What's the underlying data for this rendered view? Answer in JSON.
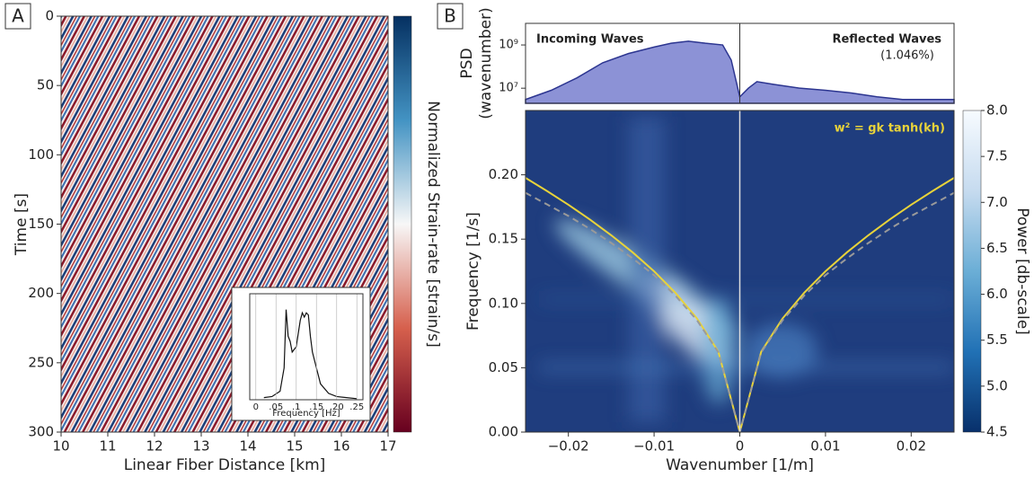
{
  "panel_labels": [
    "A",
    "B"
  ],
  "chart_data": [
    {
      "type": "heatmap",
      "xlabel": "Linear Fiber Distance [km]",
      "ylabel": "Time [s]",
      "xlim": [
        10,
        17
      ],
      "xticks": [
        10,
        11,
        12,
        13,
        14,
        15,
        16,
        17
      ],
      "ylim": [
        300,
        0
      ],
      "yticks": [
        0,
        50,
        100,
        150,
        200,
        250,
        300
      ],
      "colorbar": {
        "label": "Normalized Strain-rate [strain/s]",
        "colors": [
          "#67001f",
          "#d6604d",
          "#f7f7f7",
          "#4393c3",
          "#053061"
        ]
      }
    },
    {
      "type": "line",
      "xlabel": "Frequency [Hz]",
      "grid": true,
      "color": "#111111",
      "xlim": [
        -0.015,
        0.265
      ],
      "xticks": [
        0,
        {
          "value": 0.05,
          "label": ".05"
        },
        {
          "value": 0.1,
          "label": ".1"
        },
        {
          "value": 0.15,
          "label": ".15"
        },
        {
          "value": 0.2,
          "label": ".20"
        },
        {
          "value": 0.25,
          "label": ".25"
        }
      ],
      "ylim": [
        0,
        1
      ],
      "x": [
        0.02,
        0.04,
        0.06,
        0.07,
        0.075,
        0.08,
        0.085,
        0.09,
        0.1,
        0.11,
        0.115,
        0.12,
        0.125,
        0.13,
        0.135,
        0.14,
        0.15,
        0.16,
        0.18,
        0.2,
        0.25
      ],
      "values": [
        0.02,
        0.03,
        0.08,
        0.3,
        0.85,
        0.6,
        0.55,
        0.45,
        0.5,
        0.75,
        0.82,
        0.78,
        0.82,
        0.8,
        0.6,
        0.45,
        0.3,
        0.15,
        0.06,
        0.03,
        0.01
      ]
    },
    {
      "type": "area",
      "ylabel": [
        "PSD",
        "(wavenumber)"
      ],
      "ylog": true,
      "color": "#8c92d6",
      "line_color": "#2c3590",
      "xlim": [
        -0.025,
        0.025
      ],
      "ylim": [
        2000000,
        10000000000
      ],
      "yticks": [
        {
          "value": 10000000,
          "label": "10⁷"
        },
        {
          "value": 1000000000,
          "label": "10⁹"
        }
      ],
      "annotations": [
        "Incoming Waves",
        "Reflected Waves",
        "(1.046%)"
      ],
      "x": [
        -0.025,
        -0.022,
        -0.019,
        -0.016,
        -0.013,
        -0.01,
        -0.008,
        -0.006,
        -0.004,
        -0.002,
        -0.001,
        0,
        0.001,
        0.002,
        0.004,
        0.007,
        0.01,
        0.013,
        0.016,
        0.019,
        0.022,
        0.025
      ],
      "values": [
        3000000,
        8000000,
        30000000,
        150000000,
        400000000,
        800000000,
        1200000000,
        1500000000,
        1200000000,
        1000000000,
        200000000,
        4000000,
        10000000,
        20000000,
        15000000,
        10000000,
        8000000,
        6000000,
        4000000,
        3000000,
        3000000,
        3000000
      ]
    },
    {
      "type": "line",
      "xlabel": "Wavenumber [1/m]",
      "ylabel": "Frequency [1/s]",
      "xlim": [
        -0.025,
        0.025
      ],
      "xticks": [
        {
          "value": -0.02,
          "label": "−0.02"
        },
        {
          "value": -0.01,
          "label": "−0.01"
        },
        0,
        0.01,
        0.02
      ],
      "ylim": [
        0,
        0.25
      ],
      "yticks": [
        {
          "value": 0,
          "label": "0.00"
        },
        0.05,
        {
          "value": 0.1,
          "label": "0.10"
        },
        0.15,
        {
          "value": 0.2,
          "label": "0.20"
        }
      ],
      "annotations": [
        "w² = gk tanh(kh)"
      ],
      "annotation_color": "#e8d33a",
      "x": [
        -0.025,
        -0.0225,
        -0.02,
        -0.0175,
        -0.015,
        -0.0125,
        -0.01,
        -0.0075,
        -0.005,
        -0.0025,
        0,
        0.0025,
        0.005,
        0.0075,
        0.01,
        0.0125,
        0.015,
        0.0175,
        0.02,
        0.0225,
        0.025
      ],
      "series": [
        {
          "color": "#e8d33a",
          "style": "solid",
          "values": [
            0.1976,
            0.1874,
            0.1767,
            0.1653,
            0.153,
            0.1397,
            0.125,
            0.1082,
            0.0884,
            0.0625,
            0,
            0.0625,
            0.0884,
            0.1082,
            0.125,
            0.1397,
            0.153,
            0.1653,
            0.1767,
            0.1874,
            0.1976
          ]
        },
        {
          "color": "#9a9a9a",
          "style": "dashed",
          "values": [
            0.186,
            0.177,
            0.168,
            0.158,
            0.147,
            0.135,
            0.122,
            0.106,
            0.087,
            0.062,
            0,
            0.062,
            0.087,
            0.106,
            0.122,
            0.135,
            0.147,
            0.158,
            0.168,
            0.177,
            0.186
          ]
        }
      ],
      "colorbar": {
        "label": "Power [db-scale]",
        "colors": [
          "#08306b",
          "#2171b5",
          "#6baed6",
          "#c6dbef",
          "#f7fbff"
        ],
        "lim": [
          4.5,
          8.0
        ],
        "ticks": [
          4.5,
          {
            "value": 5,
            "label": "5.0"
          },
          5.5,
          {
            "value": 6,
            "label": "6.0"
          },
          6.5,
          {
            "value": 7,
            "label": "7.0"
          },
          7.5,
          {
            "value": 8,
            "label": "8.0"
          }
        ]
      }
    }
  ]
}
